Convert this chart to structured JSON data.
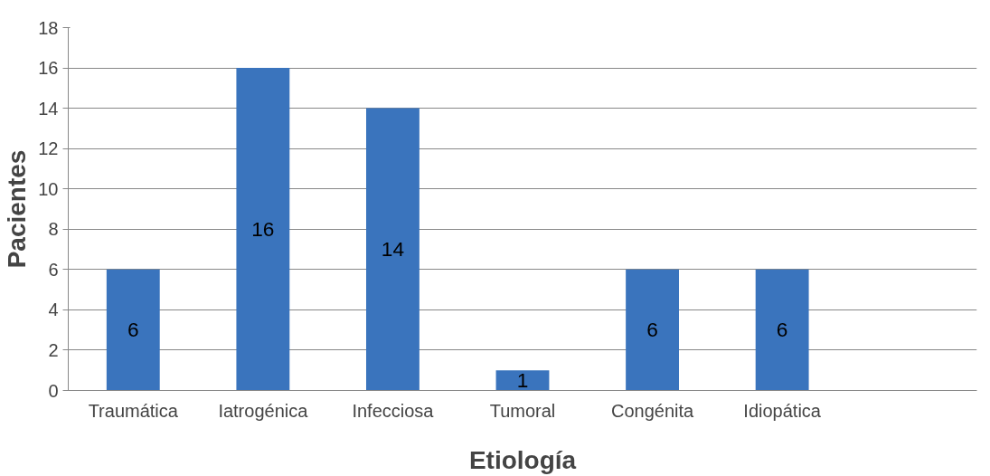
{
  "chart_data": {
    "type": "bar",
    "xlabel": "Etiología",
    "ylabel": "Pacientes",
    "categories": [
      "Traumática",
      "Iatrogénica",
      "Infecciosa",
      "Tumoral",
      "Congénita",
      "Idiopática",
      null
    ],
    "values": [
      6,
      16,
      14,
      1,
      6,
      6,
      null
    ],
    "color": "#3a74bd",
    "ylim": [
      0,
      18
    ],
    "yticks": [
      0,
      2,
      4,
      6,
      8,
      10,
      12,
      14,
      16,
      18
    ],
    "grid": "y",
    "data_labels": true
  }
}
